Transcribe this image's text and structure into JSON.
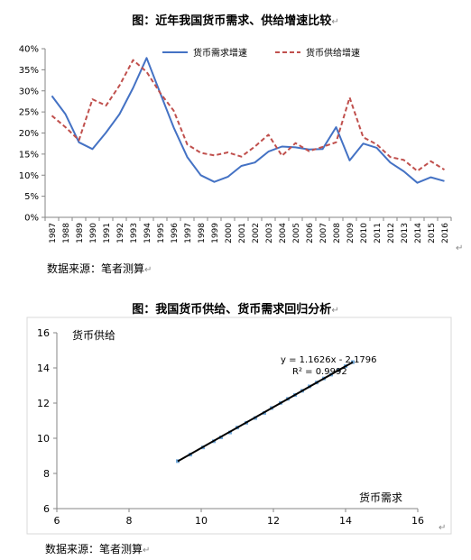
{
  "chart1_title": "图：近年我国货币需求、供给增速比较",
  "chart1_source": "数据来源：笔者测算",
  "chart2_title": "图：我国货币供给、货币需求回归分析",
  "chart2_source": "数据来源：笔者测算",
  "paragraph_mark": "↵",
  "chart_data": [
    {
      "type": "line",
      "title": "图：近年我国货币需求、供给增速比较",
      "x": [
        "1987",
        "1988",
        "1989",
        "1990",
        "1991",
        "1992",
        "1993",
        "1994",
        "1995",
        "1996",
        "1997",
        "1998",
        "1999",
        "2000",
        "2001",
        "2002",
        "2003",
        "2004",
        "2005",
        "2006",
        "2007",
        "2008",
        "2009",
        "2010",
        "2011",
        "2012",
        "2013",
        "2014",
        "2015",
        "2016"
      ],
      "ylim": [
        0,
        40
      ],
      "yticks": [
        "0%",
        "5%",
        "10%",
        "15%",
        "20%",
        "25%",
        "30%",
        "35%",
        "40%"
      ],
      "grid": false,
      "legend_position": "top",
      "series": [
        {
          "name": "货币需求增速",
          "color": "#4472C4",
          "dash": false,
          "values": [
            28.8,
            24.5,
            17.8,
            16.2,
            20.1,
            24.5,
            30.7,
            37.8,
            29.5,
            21.3,
            14.3,
            10.0,
            8.4,
            9.6,
            12.2,
            13.0,
            15.6,
            16.8,
            16.6,
            16.1,
            16.2,
            21.4,
            13.5,
            17.5,
            16.5,
            13.0,
            10.9,
            8.2,
            9.5,
            8.6
          ]
        },
        {
          "name": "货币供给增速",
          "color": "#C0504D",
          "dash": true,
          "values": [
            24.1,
            21.4,
            18.3,
            28.0,
            26.5,
            31.3,
            37.3,
            34.5,
            29.5,
            25.3,
            17.3,
            15.3,
            14.7,
            15.4,
            14.4,
            16.8,
            19.6,
            14.6,
            17.6,
            15.7,
            16.7,
            17.8,
            28.4,
            19.0,
            17.3,
            14.3,
            13.6,
            11.0,
            13.3,
            11.3
          ]
        }
      ]
    },
    {
      "type": "scatter",
      "title": "图：我国货币供给、货币需求回归分析",
      "xlabel": "货币需求",
      "ylabel": "货币供给",
      "xlim": [
        6,
        16
      ],
      "ylim": [
        6,
        16
      ],
      "xticks": [
        "6",
        "8",
        "10",
        "12",
        "14",
        "16"
      ],
      "yticks": [
        "6",
        "8",
        "10",
        "12",
        "14",
        "16"
      ],
      "grid": false,
      "trendline": {
        "slope": 1.1626,
        "intercept": -2.1796,
        "x_range": [
          9.35,
          14.2
        ]
      },
      "annotations": [
        "y = 1.1626x - 2.1796",
        "R² = 0.9992"
      ],
      "points": [
        [
          9.35,
          8.7
        ],
        [
          9.7,
          9.07
        ],
        [
          10.05,
          9.48
        ],
        [
          10.35,
          9.83
        ],
        [
          10.55,
          10.05
        ],
        [
          10.8,
          10.33
        ],
        [
          11.0,
          10.61
        ],
        [
          11.25,
          10.88
        ],
        [
          11.5,
          11.15
        ],
        [
          11.75,
          11.44
        ],
        [
          11.95,
          11.72
        ],
        [
          12.2,
          12.01
        ],
        [
          12.4,
          12.24
        ],
        [
          12.6,
          12.46
        ],
        [
          12.8,
          12.7
        ],
        [
          13.0,
          12.95
        ],
        [
          13.2,
          13.17
        ],
        [
          13.4,
          13.4
        ],
        [
          13.6,
          13.62
        ],
        [
          13.8,
          13.87
        ],
        [
          14.0,
          14.1
        ],
        [
          14.2,
          14.33
        ]
      ]
    }
  ]
}
